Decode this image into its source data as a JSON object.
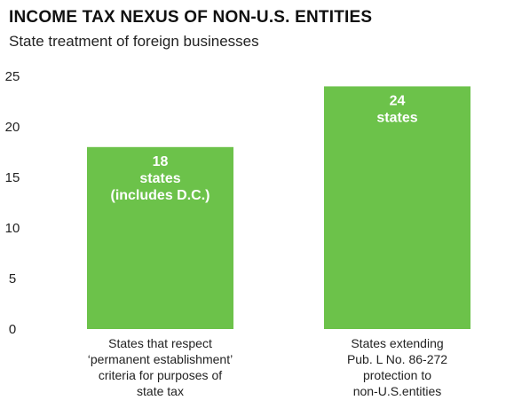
{
  "chart_data": {
    "type": "bar",
    "title": "INCOME TAX NEXUS OF NON-U.S. ENTITIES",
    "subtitle": "State treatment of foreign businesses",
    "xlabel": "",
    "ylabel": "",
    "ylim": [
      0,
      25
    ],
    "yticks": [
      "0",
      "5",
      "10",
      "15",
      "20",
      "25"
    ],
    "grid": false,
    "bar_color": "#6cc24a",
    "categories": [
      [
        "States that respect",
        "‘permanent establishment’",
        "criteria for purposes of",
        "state tax"
      ],
      [
        "States extending",
        "Pub. L No. 86-272",
        "protection to",
        "non-U.S.entities"
      ]
    ],
    "values": [
      18,
      24
    ],
    "data_labels": [
      [
        "18",
        "states",
        "(includes D.C.)"
      ],
      [
        "24",
        "states"
      ]
    ]
  }
}
